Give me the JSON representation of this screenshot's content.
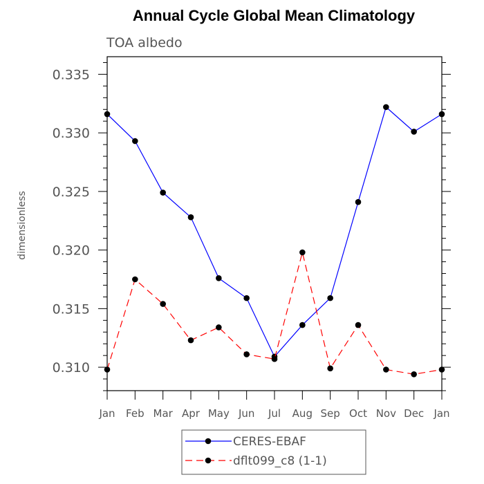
{
  "chart_data": {
    "type": "line",
    "title": "Annual Cycle Global Mean Climatology",
    "subtitle": "TOA albedo",
    "ylabel": "dimensionless",
    "xlabel": "",
    "categories": [
      "Jan",
      "Feb",
      "Mar",
      "Apr",
      "May",
      "Jun",
      "Jul",
      "Aug",
      "Sep",
      "Oct",
      "Nov",
      "Dec",
      "Jan"
    ],
    "ylim": [
      0.308,
      0.3365
    ],
    "yticks": [
      0.31,
      0.315,
      0.32,
      0.325,
      0.33,
      0.335
    ],
    "ytick_labels": [
      "0.310",
      "0.315",
      "0.320",
      "0.325",
      "0.330",
      "0.335"
    ],
    "legend_position": "bottom-center",
    "grid": false,
    "series": [
      {
        "name": "CERES-EBAF",
        "color": "#0000ff",
        "line_style": "solid",
        "values": [
          0.3316,
          0.3293,
          0.3249,
          0.3228,
          0.3176,
          0.3159,
          0.3109,
          0.3136,
          0.3159,
          0.3241,
          0.3322,
          0.3301,
          0.3316
        ]
      },
      {
        "name": "dflt099_c8 (1-1)",
        "color": "#ff0000",
        "line_style": "dashed",
        "values": [
          0.3098,
          0.3175,
          0.3154,
          0.3123,
          0.3134,
          0.3111,
          0.3107,
          0.3198,
          0.3099,
          0.3136,
          0.3098,
          0.3094,
          0.3098
        ]
      }
    ]
  }
}
